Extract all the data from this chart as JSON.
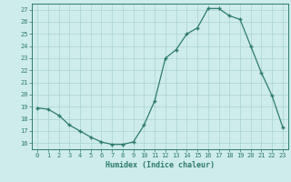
{
  "x": [
    0,
    1,
    2,
    3,
    4,
    5,
    6,
    7,
    8,
    9,
    10,
    11,
    12,
    13,
    14,
    15,
    16,
    17,
    18,
    19,
    20,
    21,
    22,
    23
  ],
  "y": [
    18.9,
    18.8,
    18.3,
    17.5,
    17.0,
    16.5,
    16.1,
    15.9,
    15.9,
    16.1,
    17.5,
    19.5,
    23.0,
    23.7,
    25.0,
    25.5,
    27.1,
    27.1,
    26.5,
    26.2,
    24.0,
    21.8,
    19.9,
    17.3
  ],
  "xlabel": "Humidex (Indice chaleur)",
  "ylim": [
    15.5,
    27.5
  ],
  "xlim": [
    -0.5,
    23.5
  ],
  "yticks": [
    16,
    17,
    18,
    19,
    20,
    21,
    22,
    23,
    24,
    25,
    26,
    27
  ],
  "xticks": [
    0,
    1,
    2,
    3,
    4,
    5,
    6,
    7,
    8,
    9,
    10,
    11,
    12,
    13,
    14,
    15,
    16,
    17,
    18,
    19,
    20,
    21,
    22,
    23
  ],
  "line_color": "#2d7b6e",
  "bg_color": "#ceecea",
  "grid_color": "#aad4ce"
}
